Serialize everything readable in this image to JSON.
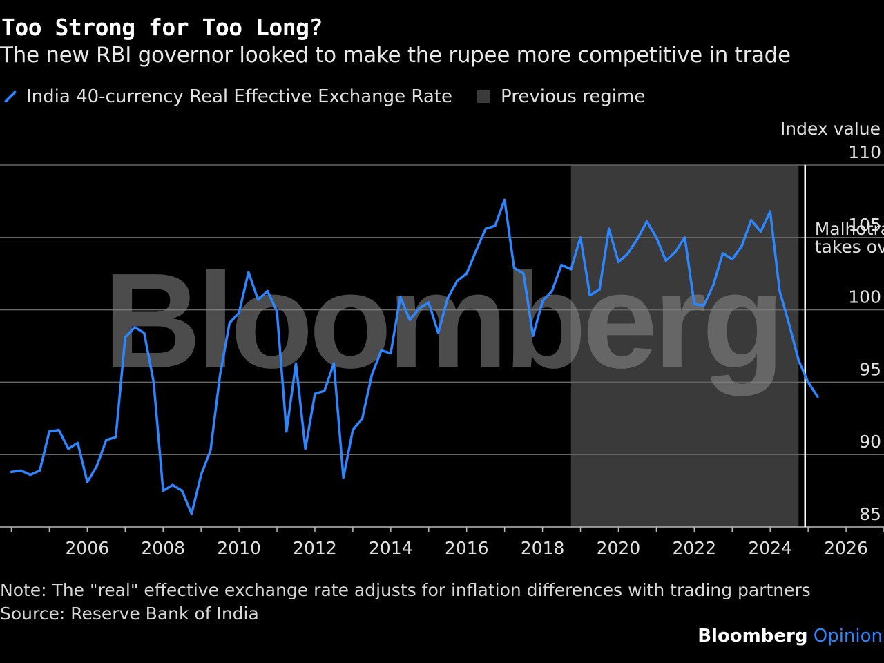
{
  "header": {
    "title": "Too Strong for Too Long?",
    "subtitle": "The new RBI governor looked to make the rupee more competitive in trade"
  },
  "legend": {
    "series_label": "India 40-currency Real Effective Exchange Rate",
    "region_label": "Previous regime"
  },
  "footer": {
    "note": "Note: The \"real\" effective exchange rate adjusts for inflation differences with trading partners",
    "source": "Source: Reserve Bank of India",
    "brand_main": "Bloomberg",
    "brand_sub": "Opinion"
  },
  "watermark": "Bloomberg",
  "colors": {
    "background": "#000000",
    "series": "#2e86ff",
    "shaded_region": "#3a3a3a",
    "gridline": "#666666",
    "marker_line": "#ffffff"
  },
  "chart_data": {
    "type": "line",
    "ylabel": "Index value",
    "ylim": [
      85,
      110
    ],
    "yticks": [
      85,
      90,
      95,
      100,
      105,
      110
    ],
    "xlim": [
      2003.7,
      2027.0
    ],
    "xticks": [
      2006,
      2008,
      2010,
      2012,
      2014,
      2016,
      2018,
      2020,
      2022,
      2024,
      2026
    ],
    "grid": true,
    "legend_position": "top-left",
    "shaded_regions": [
      {
        "label": "Previous regime",
        "start": 2018.75,
        "end": 2024.75
      }
    ],
    "annotations": [
      {
        "x": 2024.92,
        "line1": "Malhotra",
        "line2": "takes over"
      }
    ],
    "series": [
      {
        "name": "India 40-currency Real Effective Exchange Rate",
        "points": [
          [
            2004.0,
            88.8
          ],
          [
            2004.25,
            88.9
          ],
          [
            2004.5,
            88.6
          ],
          [
            2004.75,
            88.9
          ],
          [
            2005.0,
            91.6
          ],
          [
            2005.25,
            91.7
          ],
          [
            2005.5,
            90.4
          ],
          [
            2005.75,
            90.8
          ],
          [
            2006.0,
            88.1
          ],
          [
            2006.25,
            89.2
          ],
          [
            2006.5,
            91.0
          ],
          [
            2006.75,
            91.2
          ],
          [
            2007.0,
            98.1
          ],
          [
            2007.25,
            98.8
          ],
          [
            2007.5,
            98.4
          ],
          [
            2007.75,
            95.0
          ],
          [
            2008.0,
            87.5
          ],
          [
            2008.25,
            87.9
          ],
          [
            2008.5,
            87.5
          ],
          [
            2008.75,
            85.9
          ],
          [
            2009.0,
            88.6
          ],
          [
            2009.25,
            90.3
          ],
          [
            2009.5,
            95.5
          ],
          [
            2009.75,
            99.1
          ],
          [
            2010.0,
            99.8
          ],
          [
            2010.25,
            102.6
          ],
          [
            2010.5,
            100.7
          ],
          [
            2010.75,
            101.3
          ],
          [
            2011.0,
            99.9
          ],
          [
            2011.25,
            91.6
          ],
          [
            2011.5,
            96.3
          ],
          [
            2011.75,
            90.4
          ],
          [
            2012.0,
            94.2
          ],
          [
            2012.25,
            94.4
          ],
          [
            2012.5,
            96.3
          ],
          [
            2012.75,
            88.4
          ],
          [
            2013.0,
            91.7
          ],
          [
            2013.25,
            92.5
          ],
          [
            2013.5,
            95.5
          ],
          [
            2013.75,
            97.2
          ],
          [
            2014.0,
            97.0
          ],
          [
            2014.25,
            100.9
          ],
          [
            2014.5,
            99.3
          ],
          [
            2014.75,
            100.1
          ],
          [
            2015.0,
            100.5
          ],
          [
            2015.25,
            98.4
          ],
          [
            2015.5,
            100.8
          ],
          [
            2015.75,
            102.0
          ],
          [
            2016.0,
            102.5
          ],
          [
            2016.25,
            104.1
          ],
          [
            2016.5,
            105.6
          ],
          [
            2016.75,
            105.8
          ],
          [
            2017.0,
            107.6
          ],
          [
            2017.25,
            102.9
          ],
          [
            2017.5,
            102.5
          ],
          [
            2017.75,
            98.2
          ],
          [
            2018.0,
            100.6
          ],
          [
            2018.25,
            101.3
          ],
          [
            2018.5,
            103.1
          ],
          [
            2018.75,
            102.8
          ],
          [
            2019.0,
            105.0
          ],
          [
            2019.25,
            101.0
          ],
          [
            2019.5,
            101.4
          ],
          [
            2019.75,
            105.6
          ],
          [
            2020.0,
            103.3
          ],
          [
            2020.25,
            103.9
          ],
          [
            2020.5,
            104.9
          ],
          [
            2020.75,
            106.1
          ],
          [
            2021.0,
            105.0
          ],
          [
            2021.25,
            103.4
          ],
          [
            2021.5,
            104.0
          ],
          [
            2021.75,
            105.0
          ],
          [
            2022.0,
            100.4
          ],
          [
            2022.25,
            100.3
          ],
          [
            2022.5,
            101.7
          ],
          [
            2022.75,
            103.9
          ],
          [
            2023.0,
            103.5
          ],
          [
            2023.25,
            104.4
          ],
          [
            2023.5,
            106.2
          ],
          [
            2023.75,
            105.4
          ],
          [
            2024.0,
            106.8
          ],
          [
            2024.25,
            101.3
          ],
          [
            2024.5,
            99.0
          ],
          [
            2024.75,
            96.5
          ],
          [
            2025.0,
            95.0
          ],
          [
            2025.25,
            94.0
          ]
        ]
      }
    ]
  }
}
